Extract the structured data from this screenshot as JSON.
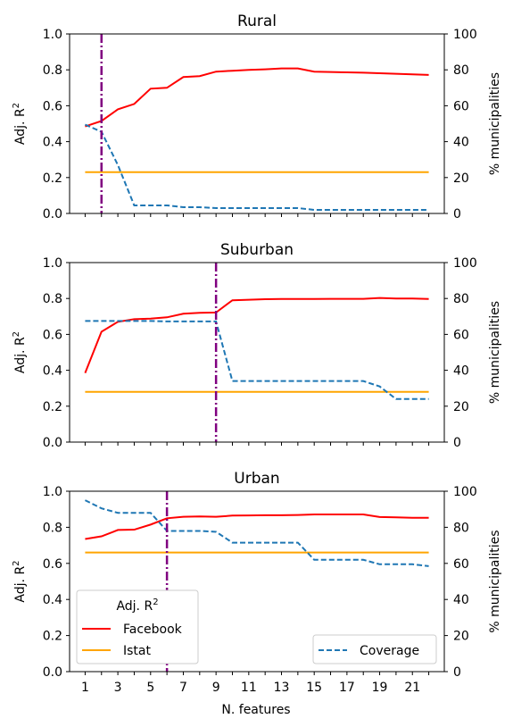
{
  "chart_data": [
    {
      "type": "line",
      "title": "Rural",
      "ylabel": "Adj. R²",
      "y2label": "% municipalities",
      "xlabel": "",
      "ylim": [
        0,
        1
      ],
      "y2lim": [
        0,
        100
      ],
      "x": [
        1,
        2,
        3,
        4,
        5,
        6,
        7,
        8,
        9,
        10,
        11,
        12,
        13,
        14,
        15,
        16,
        17,
        18,
        19,
        20,
        21,
        22
      ],
      "series": [
        {
          "name": "Facebook",
          "axis": "left",
          "color": "#ff0000",
          "dash": "solid",
          "values": [
            0.485,
            0.515,
            0.58,
            0.61,
            0.695,
            0.7,
            0.76,
            0.765,
            0.79,
            0.795,
            0.8,
            0.803,
            0.808,
            0.808,
            0.79,
            0.788,
            0.786,
            0.784,
            0.781,
            0.778,
            0.775,
            0.772
          ]
        },
        {
          "name": "Istat",
          "axis": "left",
          "color": "#ffa500",
          "dash": "solid",
          "values": [
            0.23,
            0.23,
            0.23,
            0.23,
            0.23,
            0.23,
            0.23,
            0.23,
            0.23,
            0.23,
            0.23,
            0.23,
            0.23,
            0.23,
            0.23,
            0.23,
            0.23,
            0.23,
            0.23,
            0.23,
            0.23,
            0.23
          ]
        },
        {
          "name": "Coverage",
          "axis": "right",
          "color": "#1f77b4",
          "dash": "dashed",
          "values": [
            49.5,
            45.5,
            27,
            4.5,
            4.5,
            4.5,
            3.5,
            3.5,
            3,
            3,
            3,
            3,
            3,
            3,
            2,
            2,
            2,
            2,
            2,
            2,
            2,
            2
          ]
        }
      ],
      "vline": 2,
      "xticks": [
        "",
        "",
        "",
        "",
        "",
        "",
        "",
        "",
        "",
        "",
        "",
        "",
        "",
        "",
        "",
        "",
        "",
        "",
        "",
        "",
        "",
        ""
      ]
    },
    {
      "type": "line",
      "title": "Suburban",
      "ylabel": "Adj. R²",
      "y2label": "% municipalities",
      "xlabel": "",
      "ylim": [
        0,
        1
      ],
      "y2lim": [
        0,
        100
      ],
      "x": [
        1,
        2,
        3,
        4,
        5,
        6,
        7,
        8,
        9,
        10,
        11,
        12,
        13,
        14,
        15,
        16,
        17,
        18,
        19,
        20,
        21,
        22
      ],
      "series": [
        {
          "name": "Facebook",
          "axis": "left",
          "color": "#ff0000",
          "dash": "solid",
          "values": [
            0.385,
            0.615,
            0.67,
            0.685,
            0.688,
            0.695,
            0.715,
            0.72,
            0.722,
            0.79,
            0.793,
            0.796,
            0.797,
            0.797,
            0.797,
            0.798,
            0.798,
            0.798,
            0.803,
            0.8,
            0.8,
            0.797
          ]
        },
        {
          "name": "Istat",
          "axis": "left",
          "color": "#ffa500",
          "dash": "solid",
          "values": [
            0.28,
            0.28,
            0.28,
            0.28,
            0.28,
            0.28,
            0.28,
            0.28,
            0.28,
            0.28,
            0.28,
            0.28,
            0.28,
            0.28,
            0.28,
            0.28,
            0.28,
            0.28,
            0.28,
            0.28,
            0.28,
            0.28
          ]
        },
        {
          "name": "Coverage",
          "axis": "right",
          "color": "#1f77b4",
          "dash": "dashed",
          "values": [
            67.5,
            67.5,
            67.5,
            67.5,
            67.5,
            67.2,
            67.2,
            67.2,
            67.2,
            34,
            34,
            34,
            34,
            34,
            34,
            34,
            34,
            34,
            31,
            24,
            24,
            24
          ]
        }
      ],
      "vline": 9,
      "xticks": [
        "",
        "",
        "",
        "",
        "",
        "",
        "",
        "",
        "",
        "",
        "",
        "",
        "",
        "",
        "",
        "",
        "",
        "",
        "",
        "",
        "",
        ""
      ]
    },
    {
      "type": "line",
      "title": "Urban",
      "ylabel": "Adj. R²",
      "y2label": "% municipalities",
      "xlabel": "N. features",
      "ylim": [
        0,
        1
      ],
      "y2lim": [
        0,
        100
      ],
      "x": [
        1,
        2,
        3,
        4,
        5,
        6,
        7,
        8,
        9,
        10,
        11,
        12,
        13,
        14,
        15,
        16,
        17,
        18,
        19,
        20,
        21,
        22
      ],
      "series": [
        {
          "name": "Facebook",
          "axis": "left",
          "color": "#ff0000",
          "dash": "solid",
          "values": [
            0.735,
            0.75,
            0.785,
            0.787,
            0.815,
            0.85,
            0.858,
            0.86,
            0.858,
            0.865,
            0.866,
            0.867,
            0.867,
            0.868,
            0.871,
            0.871,
            0.871,
            0.871,
            0.857,
            0.855,
            0.853,
            0.853
          ]
        },
        {
          "name": "Istat",
          "axis": "left",
          "color": "#ffa500",
          "dash": "solid",
          "values": [
            0.66,
            0.66,
            0.66,
            0.66,
            0.66,
            0.66,
            0.66,
            0.66,
            0.66,
            0.66,
            0.66,
            0.66,
            0.66,
            0.66,
            0.66,
            0.66,
            0.66,
            0.66,
            0.66,
            0.66,
            0.66,
            0.66
          ]
        },
        {
          "name": "Coverage",
          "axis": "right",
          "color": "#1f77b4",
          "dash": "dashed",
          "values": [
            95,
            90.5,
            88,
            88,
            88,
            78,
            78,
            78,
            77.5,
            71.5,
            71.5,
            71.5,
            71.5,
            71.5,
            62,
            62,
            62,
            62,
            59.5,
            59.5,
            59.5,
            58.5
          ]
        }
      ],
      "vline": 6,
      "xticks": [
        "1",
        "",
        "3",
        "",
        "5",
        "",
        "7",
        "",
        "9",
        "",
        "11",
        "",
        "13",
        "",
        "15",
        "",
        "17",
        "",
        "19",
        "",
        "21",
        ""
      ]
    }
  ],
  "legend_left": {
    "title": "Adj. R²",
    "items": [
      {
        "label": "Facebook",
        "color": "#ff0000"
      },
      {
        "label": "Istat",
        "color": "#ffa500"
      }
    ]
  },
  "legend_right": {
    "items": [
      {
        "label": "Coverage",
        "color": "#1f77b4"
      }
    ]
  },
  "yticks_left": [
    "0.0",
    "0.2",
    "0.4",
    "0.6",
    "0.8",
    "1.0"
  ],
  "yticks_right": [
    "0",
    "20",
    "40",
    "60",
    "80",
    "100"
  ],
  "vline_color": "#800080"
}
